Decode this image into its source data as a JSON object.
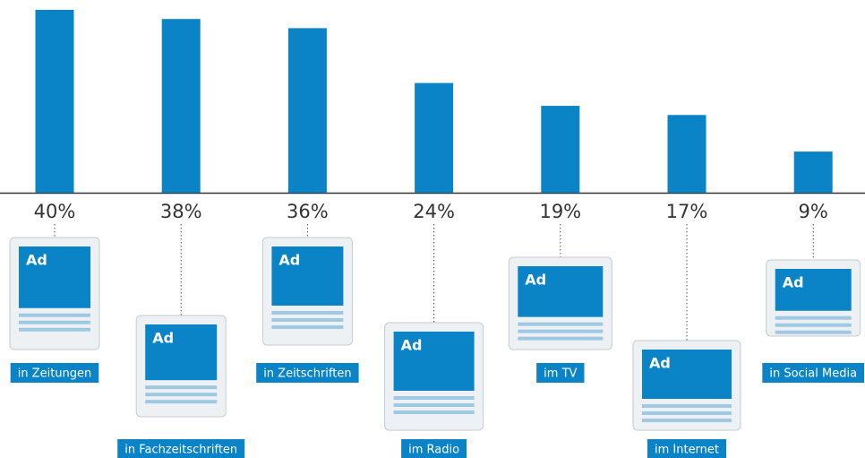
{
  "chart_data": {
    "type": "bar",
    "categories": [
      "in Zeitungen",
      "in Fachzeitschriften",
      "in Zeitschriften",
      "im Radio",
      "im TV",
      "im Internet",
      "in Social Media"
    ],
    "values": [
      40,
      38,
      36,
      24,
      19,
      17,
      9
    ],
    "value_labels": [
      "40%",
      "38%",
      "36%",
      "24%",
      "19%",
      "17%",
      "9%"
    ],
    "color": "#0a84c6",
    "ylim": [
      0,
      40
    ],
    "icon_text": "Ad"
  }
}
